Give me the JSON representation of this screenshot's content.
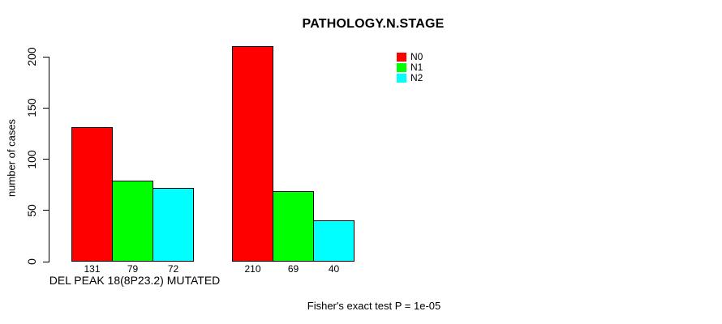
{
  "chart_data": {
    "type": "bar",
    "title": "PATHOLOGY.N.STAGE",
    "ylabel": "number of cases",
    "xlabel": "DEL PEAK 18(8P23.2) MUTATED",
    "yticks": [
      0,
      50,
      100,
      150,
      200
    ],
    "ylim": [
      0,
      210
    ],
    "grid": false,
    "legend_position": "top-right-inside",
    "categories": [
      "DEL PEAK 18(8P23.2) MUTATED",
      ""
    ],
    "series": [
      {
        "name": "N0",
        "color": "#FF0000",
        "values": [
          131,
          210
        ]
      },
      {
        "name": "N1",
        "color": "#00FF00",
        "values": [
          79,
          69
        ]
      },
      {
        "name": "N2",
        "color": "#00FFFF",
        "values": [
          72,
          40
        ]
      }
    ],
    "bar_value_labels": [
      [
        131,
        79,
        72
      ],
      [
        210,
        69,
        40
      ]
    ],
    "annotation": "Fisher's exact test P = 1e-05"
  },
  "colors": {
    "axis": "#000000",
    "background": "#FFFFFF",
    "bar_border": "#000000"
  }
}
